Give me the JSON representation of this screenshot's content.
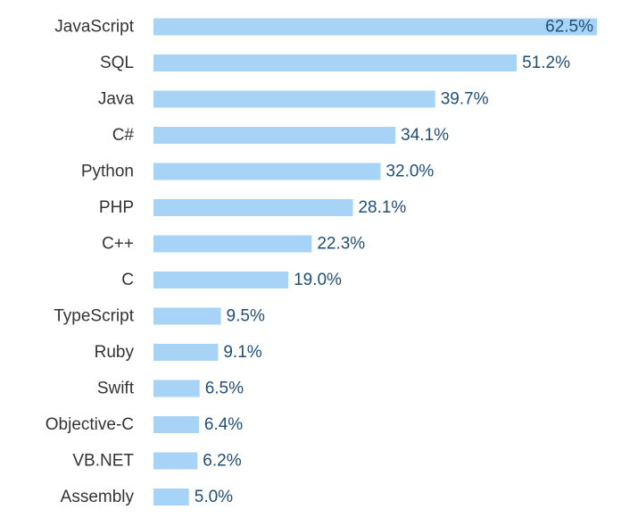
{
  "colors": {
    "bar": "#a6d3f6",
    "value_text": "#1f4e79",
    "category_text": "#333333",
    "background": "#ffffff"
  },
  "chart_data": {
    "type": "bar",
    "orientation": "horizontal",
    "categories": [
      "JavaScript",
      "SQL",
      "Java",
      "C#",
      "Python",
      "PHP",
      "C++",
      "C",
      "TypeScript",
      "Ruby",
      "Swift",
      "Objective-C",
      "VB.NET",
      "Assembly"
    ],
    "values": [
      62.5,
      51.2,
      39.7,
      34.1,
      32.0,
      28.1,
      22.3,
      19.0,
      9.5,
      9.1,
      6.5,
      6.4,
      6.2,
      5.0
    ],
    "value_labels": [
      "62.5%",
      "51.2%",
      "39.7%",
      "34.1%",
      "32.0%",
      "28.1%",
      "22.3%",
      "19.0%",
      "9.5%",
      "9.1%",
      "6.5%",
      "6.4%",
      "6.2%",
      "5.0%"
    ],
    "title": "",
    "xlabel": "",
    "ylabel": "",
    "unit": "%",
    "xlim": [
      0,
      62.5
    ],
    "grid": false,
    "legend": "none"
  }
}
